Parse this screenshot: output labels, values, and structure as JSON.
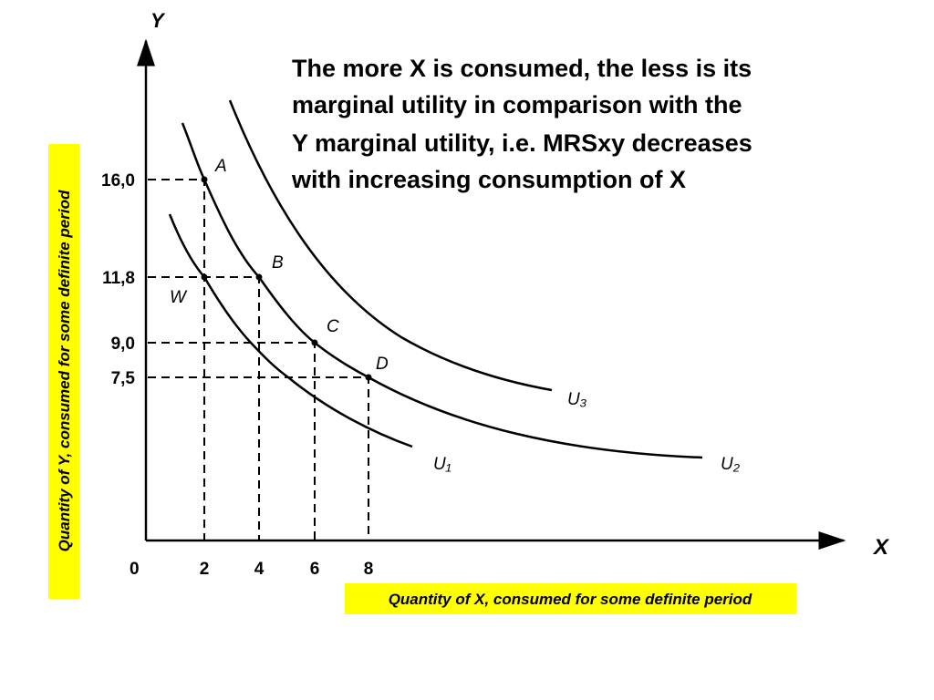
{
  "axes": {
    "y_label": "Y",
    "x_label": "X",
    "origin": "0"
  },
  "y_ticks": [
    "16,0",
    "11,8",
    "9,0",
    "7,5"
  ],
  "x_ticks": [
    "2",
    "4",
    "6",
    "8"
  ],
  "points": [
    "A",
    "B",
    "C",
    "D",
    "W"
  ],
  "curves": [
    "U₁",
    "U₂",
    "U₃"
  ],
  "annotation": [
    "The more X is  consumed, the less is its",
    "marginal utility in comparison with the",
    "Y marginal utility, i.e. MRSxy decreases",
    "with increasing consumption of X"
  ],
  "y_axis_title": "Quantity of Y, consumed  for some definite period",
  "x_axis_title": "Quantity of X, consumed  for some definite period"
}
